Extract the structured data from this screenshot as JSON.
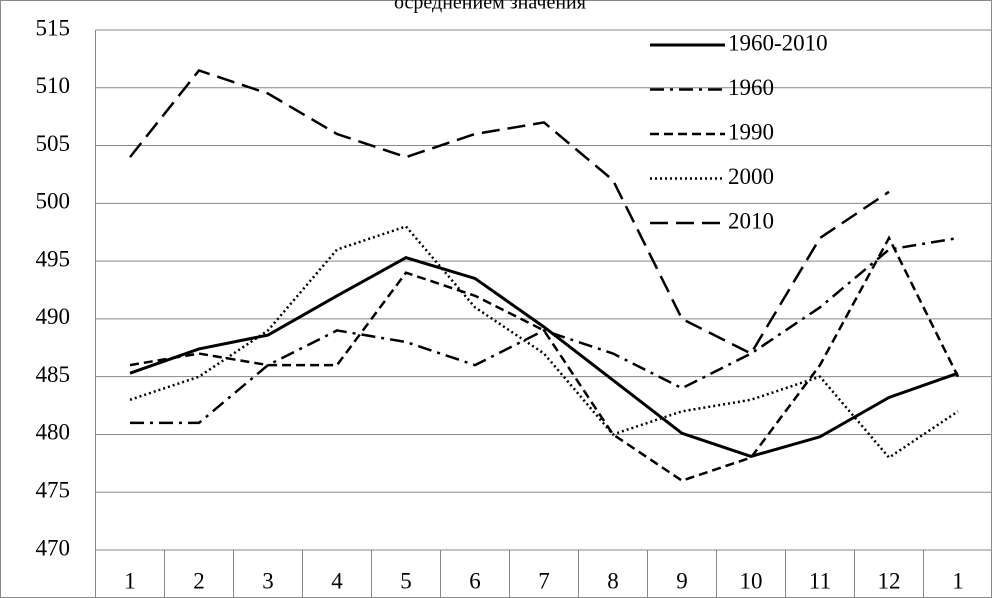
{
  "chart_data": {
    "type": "line",
    "title": "осреднением значения",
    "categories": [
      "1",
      "2",
      "3",
      "4",
      "5",
      "6",
      "7",
      "8",
      "9",
      "10",
      "11",
      "12",
      "1"
    ],
    "series": [
      {
        "name": "1960-2010",
        "color": "#000000",
        "dash": "none",
        "width": 3,
        "values": [
          485.3,
          487.4,
          488.6,
          492,
          495.3,
          493.5,
          489.3,
          484.7,
          480.1,
          478.1,
          479.8,
          483.2,
          485.3
        ]
      },
      {
        "name": "1960",
        "color": "#000000",
        "dash": "14 6 3 6",
        "width": 2.5,
        "values": [
          481,
          481,
          486,
          489,
          488,
          486,
          489,
          487,
          484,
          487,
          491,
          496,
          497
        ]
      },
      {
        "name": "1990",
        "color": "#000000",
        "dash": "9 5",
        "width": 2.5,
        "values": [
          486,
          487,
          486,
          486,
          494,
          492,
          489,
          480,
          476,
          478,
          486,
          497,
          485
        ]
      },
      {
        "name": "2000",
        "color": "#000000",
        "dash": "2 3",
        "width": 2.5,
        "values": [
          483,
          485,
          489,
          496,
          498,
          491,
          487,
          480,
          482,
          483,
          485,
          478,
          482
        ]
      },
      {
        "name": "2010",
        "color": "#000000",
        "dash": "18 8",
        "width": 2.5,
        "values": [
          504,
          511.5,
          509.5,
          506,
          504,
          506,
          507,
          502,
          490,
          487,
          497,
          501,
          null
        ]
      }
    ],
    "ylim": [
      470,
      515
    ],
    "yticks": [
      470,
      475,
      480,
      485,
      490,
      495,
      500,
      505,
      510,
      515
    ],
    "grid": true
  }
}
